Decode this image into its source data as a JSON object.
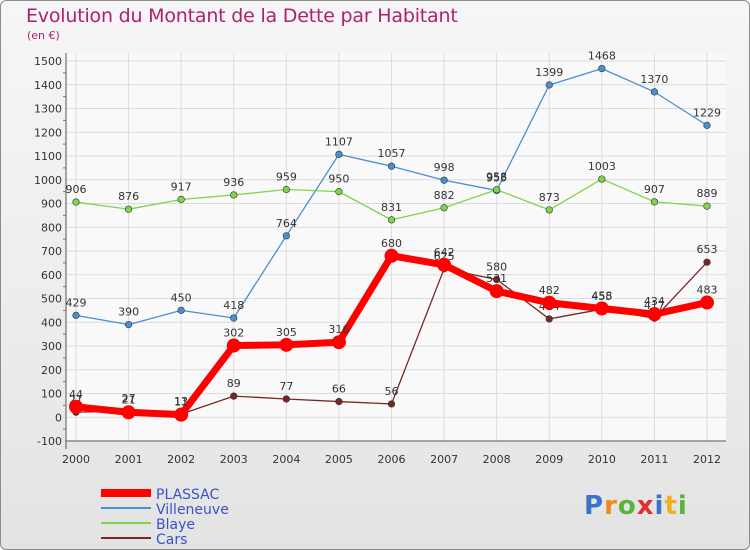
{
  "header": {
    "title": "Evolution du Montant de la Dette par Habitant",
    "subtitle": "(en €)"
  },
  "logo": {
    "text": "Proxiti"
  },
  "chart_data": {
    "type": "line",
    "title": "Evolution du Montant de la Dette par Habitant",
    "subtitle": "(en €)",
    "x": [
      "2000",
      "2001",
      "2002",
      "2003",
      "2004",
      "2005",
      "2006",
      "2007",
      "2008",
      "2009",
      "2010",
      "2011",
      "2012"
    ],
    "ylim": [
      -100,
      1500
    ],
    "yticks": [
      "-100",
      "0",
      "100",
      "200",
      "300",
      "400",
      "500",
      "600",
      "700",
      "800",
      "900",
      "1000",
      "1100",
      "1200",
      "1300",
      "1400",
      "1500"
    ],
    "grid": true,
    "legend_position": "bottom-left",
    "series": [
      {
        "name": "Villeneuve",
        "color": "#4a8fd0",
        "values": [
          429,
          390,
          450,
          418,
          764,
          1107,
          1057,
          998,
          955,
          1399,
          1468,
          1370,
          1229
        ],
        "labels": [
          "429",
          "390",
          "450",
          "418",
          "764",
          "1107",
          "1057",
          "998",
          "955",
          "1399",
          "1468",
          "1370",
          "1229"
        ]
      },
      {
        "name": "Blaye",
        "color": "#7fd44c",
        "values": [
          906,
          876,
          917,
          936,
          959,
          950,
          831,
          882,
          958,
          873,
          1003,
          907,
          889
        ],
        "labels": [
          "906",
          "876",
          "917",
          "936",
          "959",
          "950",
          "831",
          "882",
          "958",
          "873",
          "1003",
          "907",
          "889"
        ]
      },
      {
        "name": "Cars",
        "color": "#7a2626",
        "values": [
          21,
          27,
          13,
          89,
          77,
          66,
          56,
          625,
          580,
          414,
          455,
          417,
          653
        ],
        "labels": [
          "21",
          "27",
          "13",
          "89",
          "77",
          "66",
          "56",
          "625",
          "580",
          "414",
          "455",
          "417",
          "653"
        ]
      },
      {
        "name": "PLASSAC",
        "color": "#ff0000",
        "values": [
          44,
          21,
          11,
          302,
          305,
          316,
          680,
          642,
          531,
          482,
          458,
          434,
          483
        ],
        "labels": [
          "44",
          "21",
          "11",
          "302",
          "305",
          "316",
          "680",
          "642",
          "531",
          "482",
          "458",
          "434",
          "483"
        ]
      }
    ],
    "legend": [
      {
        "name": "PLASSAC",
        "color": "#ff0000"
      },
      {
        "name": "Villeneuve",
        "color": "#4a8fd0"
      },
      {
        "name": "Blaye",
        "color": "#7fd44c"
      },
      {
        "name": "Cars",
        "color": "#7a2626"
      }
    ]
  }
}
